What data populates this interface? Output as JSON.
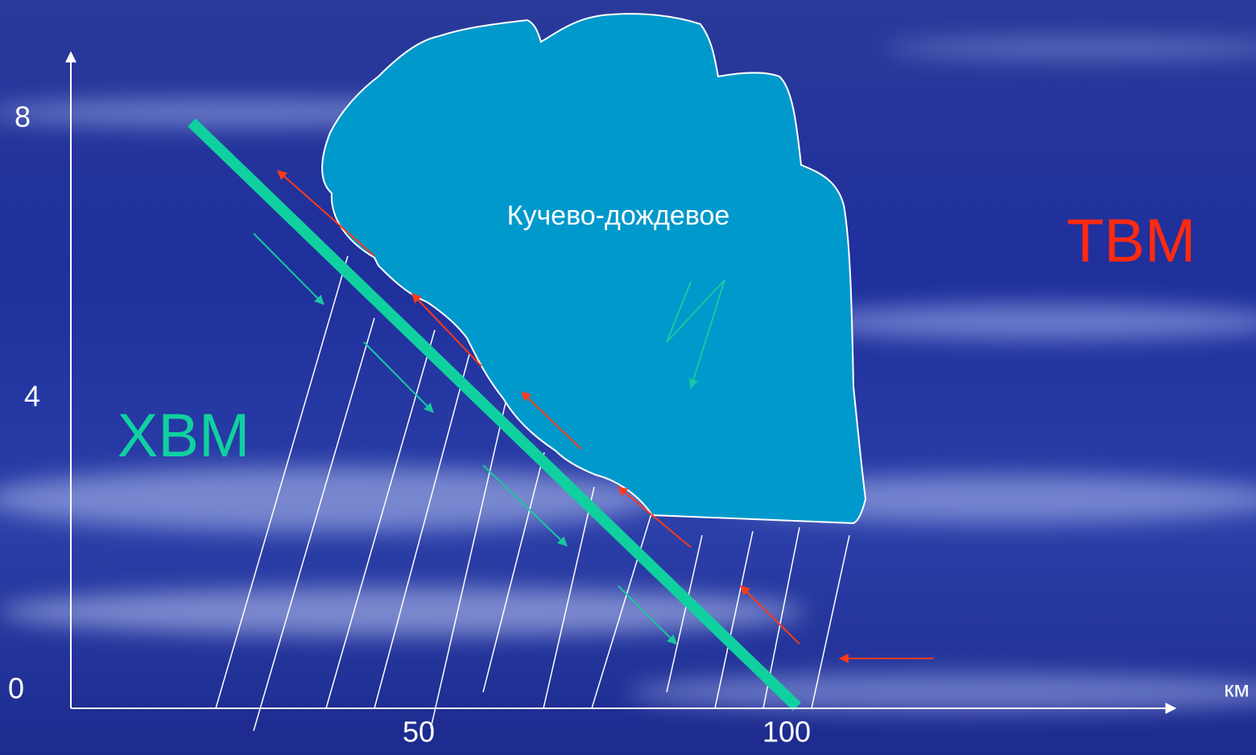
{
  "axis": {
    "y_labels": [
      "8",
      "4",
      "0"
    ],
    "x_labels": [
      "50",
      "100"
    ],
    "x_unit": "км"
  },
  "cloud": {
    "label": "Кучево-дождевое"
  },
  "air_masses": {
    "warm": "ТВМ",
    "cold": "ХВМ"
  }
}
